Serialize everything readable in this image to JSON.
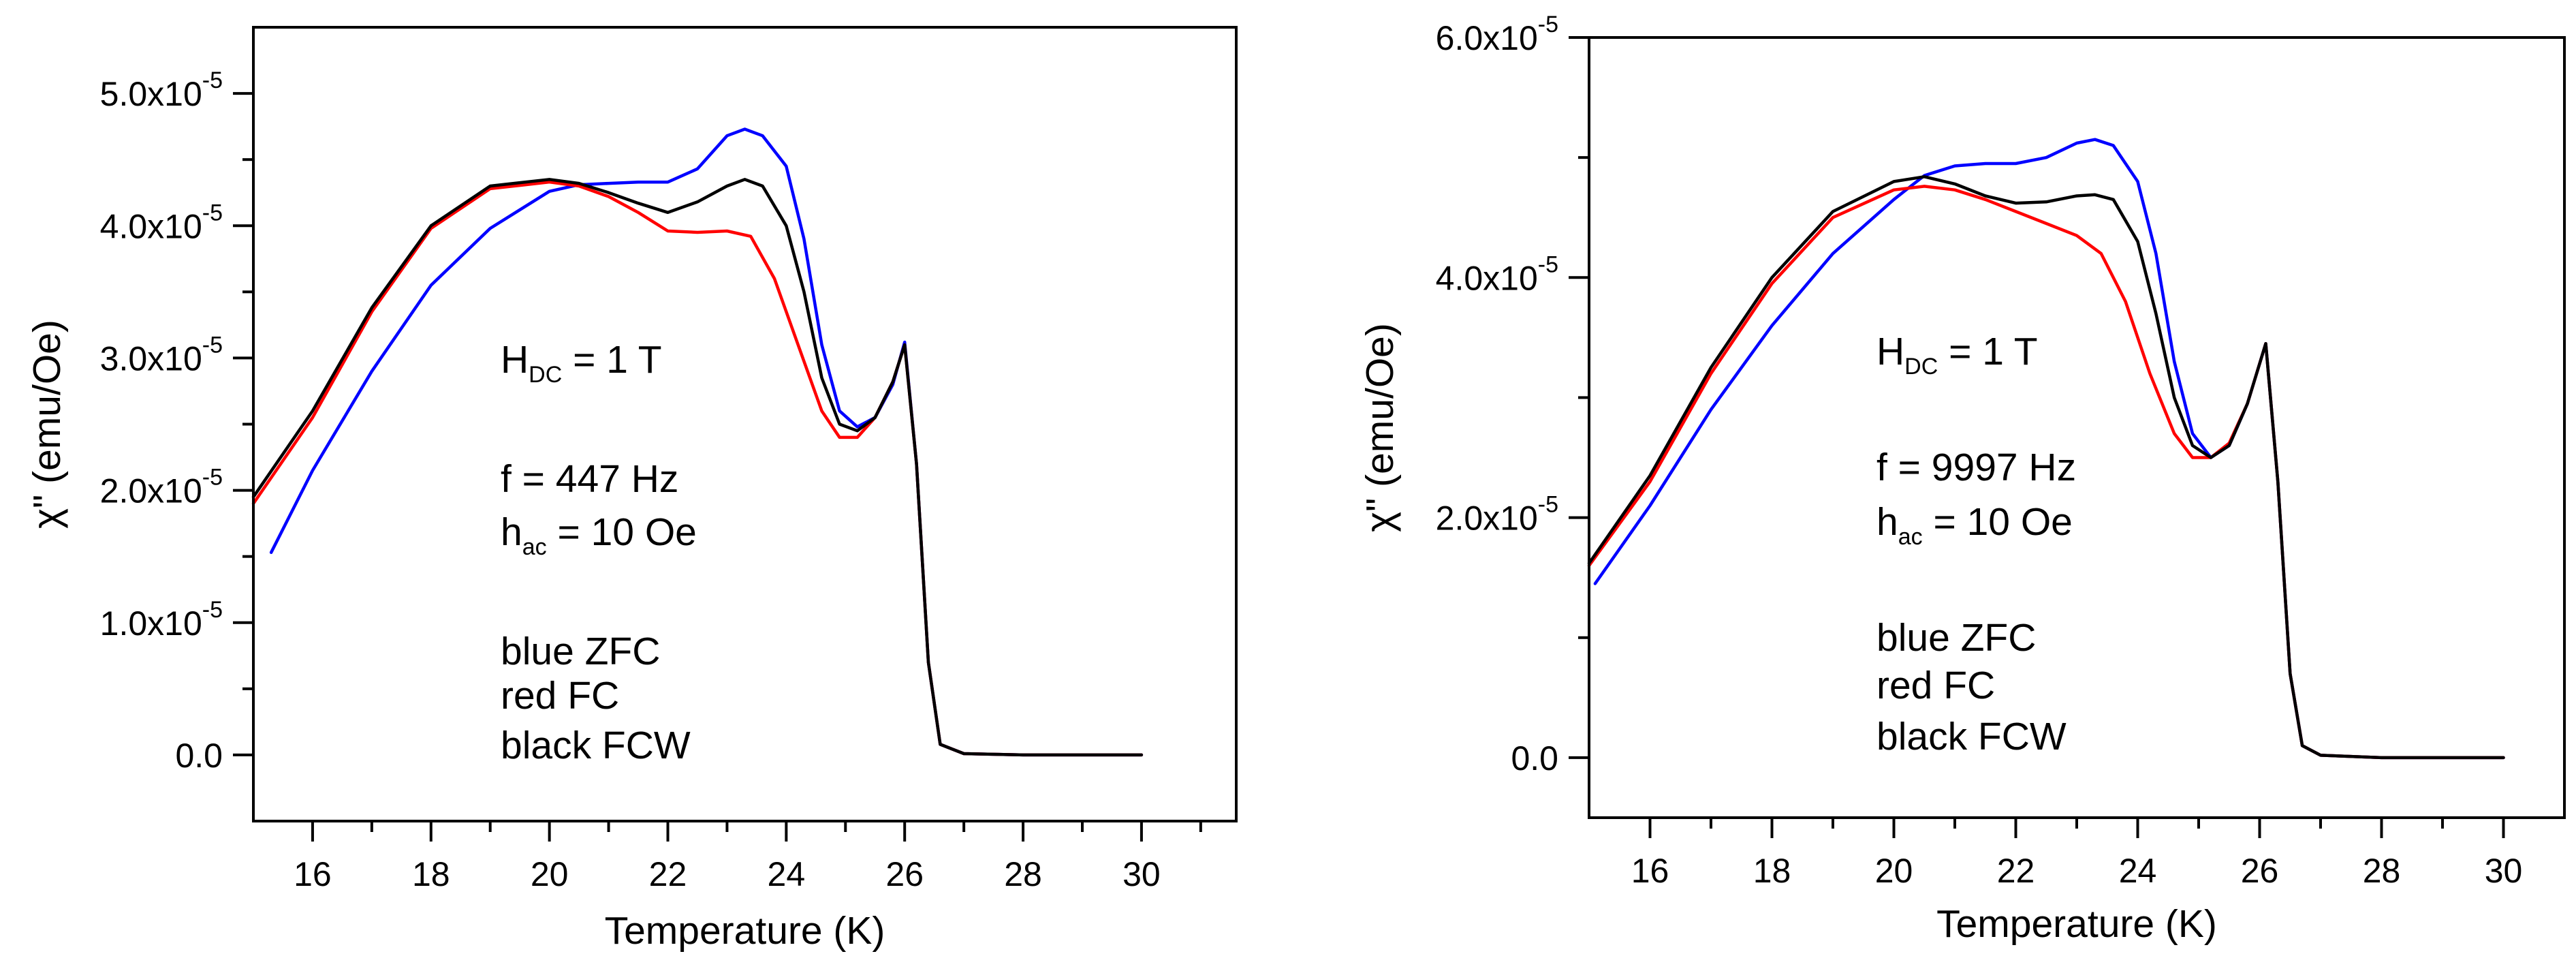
{
  "chart_data": [
    {
      "type": "line",
      "id": "left",
      "xlabel": "Temperature (K)",
      "ylabel": "χ\" (emu/Oe)",
      "xlim": [
        15,
        31.6
      ],
      "ylim": [
        -5e-06,
        5.5e-05
      ],
      "x_ticks": [
        16,
        18,
        20,
        22,
        24,
        26,
        28,
        30
      ],
      "x_tick_labels": [
        "16",
        "18",
        "20",
        "22",
        "24",
        "26",
        "28",
        "30"
      ],
      "y_ticks": [
        0,
        1e-05,
        2e-05,
        3e-05,
        4e-05,
        5e-05
      ],
      "y_tick_labels": [
        {
          "base": "0.0",
          "exp": ""
        },
        {
          "base": "1.0x10",
          "exp": "-5"
        },
        {
          "base": "2.0x10",
          "exp": "-5"
        },
        {
          "base": "3.0x10",
          "exp": "-5"
        },
        {
          "base": "4.0x10",
          "exp": "-5"
        },
        {
          "base": "5.0x10",
          "exp": "-5"
        }
      ],
      "annotations": {
        "hdc_main": "H",
        "hdc_sub": "DC",
        "hdc_rest": " = 1 T",
        "freq": "f = 447 Hz",
        "hac_main": "h",
        "hac_sub": "ac",
        "hac_rest": " = 10 Oe",
        "legend": [
          "blue ZFC",
          "red FC",
          "black FCW"
        ]
      },
      "series": [
        {
          "name": "ZFC",
          "color": "#0000ff",
          "x": [
            15.3,
            16,
            17,
            18,
            19,
            20,
            20.5,
            21,
            21.5,
            22,
            22.5,
            23,
            23.3,
            23.6,
            24,
            24.3,
            24.6,
            24.9,
            25.2,
            25.5,
            25.8,
            26.0,
            26.2,
            26.4,
            26.6,
            27,
            28,
            29,
            30
          ],
          "values": [
            1.53e-05,
            2.15e-05,
            2.9e-05,
            3.55e-05,
            3.98e-05,
            4.26e-05,
            4.31e-05,
            4.32e-05,
            4.33e-05,
            4.33e-05,
            4.43e-05,
            4.68e-05,
            4.73e-05,
            4.68e-05,
            4.45e-05,
            3.9e-05,
            3.1e-05,
            2.6e-05,
            2.48e-05,
            2.55e-05,
            2.8e-05,
            3.12e-05,
            2.2e-05,
            7e-06,
            8e-07,
            1e-07,
            0.0,
            0.0,
            0.0
          ]
        },
        {
          "name": "FC",
          "color": "#ff0000",
          "x": [
            15.0,
            16,
            17,
            18,
            19,
            20,
            20.5,
            21,
            21.5,
            22,
            22.5,
            23,
            23.4,
            23.8,
            24.2,
            24.6,
            24.9,
            25.2,
            25.5,
            25.8,
            26.0,
            26.2,
            26.4,
            26.6,
            27,
            28,
            29,
            30
          ],
          "values": [
            1.9e-05,
            2.55e-05,
            3.35e-05,
            3.98e-05,
            4.28e-05,
            4.33e-05,
            4.3e-05,
            4.22e-05,
            4.1e-05,
            3.96e-05,
            3.95e-05,
            3.96e-05,
            3.92e-05,
            3.6e-05,
            3.1e-05,
            2.6e-05,
            2.4e-05,
            2.4e-05,
            2.55e-05,
            2.82e-05,
            3.1e-05,
            2.2e-05,
            7e-06,
            8e-07,
            1e-07,
            0.0,
            0.0,
            0.0
          ]
        },
        {
          "name": "FCW",
          "color": "#000000",
          "x": [
            15.0,
            16,
            17,
            18,
            19,
            20,
            20.5,
            21,
            21.5,
            22,
            22.5,
            23,
            23.3,
            23.6,
            24,
            24.3,
            24.6,
            24.9,
            25.2,
            25.5,
            25.8,
            26.0,
            26.2,
            26.4,
            26.6,
            27,
            28,
            29,
            30
          ],
          "values": [
            1.95e-05,
            2.6e-05,
            3.38e-05,
            4e-05,
            4.3e-05,
            4.35e-05,
            4.32e-05,
            4.25e-05,
            4.17e-05,
            4.1e-05,
            4.18e-05,
            4.3e-05,
            4.35e-05,
            4.3e-05,
            4e-05,
            3.5e-05,
            2.85e-05,
            2.5e-05,
            2.45e-05,
            2.55e-05,
            2.82e-05,
            3.1e-05,
            2.2e-05,
            7e-06,
            8e-07,
            1e-07,
            0.0,
            0.0,
            0.0
          ]
        }
      ]
    },
    {
      "type": "line",
      "id": "right",
      "xlabel": "Temperature (K)",
      "ylabel": "χ\" (emu/Oe)",
      "xlim": [
        15,
        31.0
      ],
      "ylim": [
        -5e-06,
        6e-05
      ],
      "x_ticks": [
        16,
        18,
        20,
        22,
        24,
        26,
        28,
        30
      ],
      "x_tick_labels": [
        "16",
        "18",
        "20",
        "22",
        "24",
        "26",
        "28",
        "30"
      ],
      "y_ticks": [
        0,
        2e-05,
        4e-05,
        6e-05
      ],
      "y_minor_ticks": [
        1e-05,
        3e-05,
        5e-05
      ],
      "y_tick_labels": [
        {
          "base": "0.0",
          "exp": ""
        },
        {
          "base": "2.0x10",
          "exp": "-5"
        },
        {
          "base": "4.0x10",
          "exp": "-5"
        },
        {
          "base": "6.0x10",
          "exp": "-5"
        }
      ],
      "annotations": {
        "hdc_main": "H",
        "hdc_sub": "DC",
        "hdc_rest": " = 1 T",
        "freq": "f = 9997 Hz",
        "hac_main": "h",
        "hac_sub": "ac",
        "hac_rest": " = 10 Oe",
        "legend": [
          "blue ZFC",
          "red FC",
          "black FCW"
        ]
      },
      "series": [
        {
          "name": "ZFC",
          "color": "#0000ff",
          "x": [
            15.1,
            16,
            17,
            18,
            19,
            20,
            20.5,
            21,
            21.5,
            22,
            22.5,
            23,
            23.3,
            23.6,
            24,
            24.3,
            24.6,
            24.9,
            25.2,
            25.5,
            25.8,
            26.1,
            26.3,
            26.5,
            26.7,
            27,
            28,
            29,
            30
          ],
          "values": [
            1.45e-05,
            2.1e-05,
            2.9e-05,
            3.6e-05,
            4.2e-05,
            4.65e-05,
            4.85e-05,
            4.93e-05,
            4.95e-05,
            4.95e-05,
            5e-05,
            5.12e-05,
            5.15e-05,
            5.1e-05,
            4.8e-05,
            4.2e-05,
            3.3e-05,
            2.7e-05,
            2.5e-05,
            2.6e-05,
            2.95e-05,
            3.45e-05,
            2.3e-05,
            7e-06,
            1e-06,
            2e-07,
            0.0,
            0.0,
            0.0
          ]
        },
        {
          "name": "FC",
          "color": "#ff0000",
          "x": [
            15.0,
            16,
            17,
            18,
            19,
            20,
            20.5,
            21,
            21.5,
            22,
            22.5,
            23,
            23.4,
            23.8,
            24.2,
            24.6,
            24.9,
            25.2,
            25.5,
            25.8,
            26.1,
            26.3,
            26.5,
            26.7,
            27,
            28,
            29,
            30
          ],
          "values": [
            1.6e-05,
            2.3e-05,
            3.2e-05,
            3.95e-05,
            4.5e-05,
            4.73e-05,
            4.76e-05,
            4.73e-05,
            4.65e-05,
            4.55e-05,
            4.45e-05,
            4.35e-05,
            4.2e-05,
            3.8e-05,
            3.2e-05,
            2.7e-05,
            2.5e-05,
            2.5e-05,
            2.62e-05,
            2.95e-05,
            3.45e-05,
            2.3e-05,
            7e-06,
            1e-06,
            2e-07,
            0.0,
            0.0,
            0.0
          ]
        },
        {
          "name": "FCW",
          "color": "#000000",
          "x": [
            15.0,
            16,
            17,
            18,
            19,
            20,
            20.5,
            21,
            21.5,
            22,
            22.5,
            23,
            23.3,
            23.6,
            24,
            24.3,
            24.6,
            24.9,
            25.2,
            25.5,
            25.8,
            26.1,
            26.3,
            26.5,
            26.7,
            27,
            28,
            29,
            30
          ],
          "values": [
            1.62e-05,
            2.35e-05,
            3.25e-05,
            4e-05,
            4.55e-05,
            4.8e-05,
            4.84e-05,
            4.78e-05,
            4.68e-05,
            4.62e-05,
            4.63e-05,
            4.68e-05,
            4.69e-05,
            4.65e-05,
            4.3e-05,
            3.7e-05,
            3e-05,
            2.6e-05,
            2.5e-05,
            2.6e-05,
            2.95e-05,
            3.45e-05,
            2.3e-05,
            7e-06,
            1e-06,
            2e-07,
            0.0,
            0.0,
            0.0
          ]
        }
      ]
    }
  ]
}
